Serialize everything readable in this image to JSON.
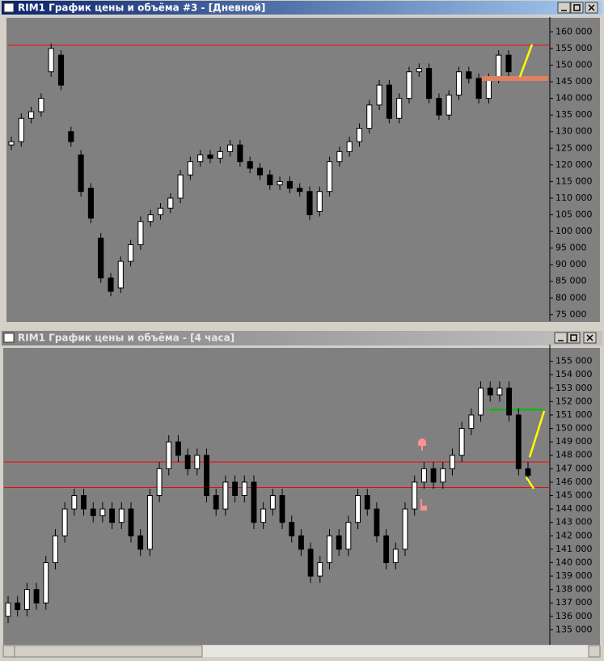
{
  "chart_data": [
    {
      "type": "candlestick",
      "title": "RIM1 График цены и объёма #3 - [Дневной]",
      "open": [
        126000,
        127000,
        134000,
        136000,
        148000,
        153000,
        130000,
        123000,
        113000,
        98000,
        86000,
        83000,
        91000,
        96000,
        103000,
        105000,
        107000,
        110000,
        117000,
        121000,
        123000,
        122000,
        124000,
        126000,
        121000,
        119000,
        117000,
        114000,
        115000,
        113000,
        112000,
        106000,
        112000,
        121000,
        124000,
        127000,
        131000,
        138000,
        144000,
        134000,
        140000,
        148000,
        149000,
        140000,
        135000,
        141000,
        148000,
        146000,
        140000,
        146000,
        153000
      ],
      "high": [
        128500,
        135500,
        137500,
        141500,
        156500,
        154500,
        131500,
        124500,
        114500,
        99500,
        87500,
        92500,
        97500,
        104500,
        106500,
        108500,
        111500,
        118500,
        122500,
        124500,
        124500,
        125500,
        127500,
        127500,
        122500,
        120500,
        118500,
        116500,
        116500,
        114500,
        113500,
        113500,
        122500,
        125500,
        128500,
        132500,
        139500,
        145500,
        145500,
        141500,
        149500,
        150500,
        150500,
        141500,
        142500,
        149500,
        149500,
        147500,
        147500,
        154500,
        154500
      ],
      "low": [
        124500,
        125500,
        132500,
        134500,
        146500,
        142500,
        125500,
        110500,
        102500,
        84500,
        80500,
        81500,
        89500,
        94500,
        101500,
        103500,
        105500,
        108500,
        115500,
        119500,
        120500,
        120500,
        122500,
        119500,
        117500,
        115500,
        112500,
        112500,
        111500,
        110500,
        103500,
        104500,
        110500,
        119500,
        122500,
        125500,
        129500,
        136500,
        132500,
        132500,
        138500,
        146500,
        138500,
        133500,
        133500,
        139500,
        144500,
        138500,
        138500,
        144500,
        146500
      ],
      "close": [
        127000,
        134000,
        136000,
        140000,
        155000,
        144000,
        127000,
        112000,
        104000,
        86000,
        82000,
        91000,
        96000,
        103000,
        105000,
        107000,
        110000,
        117000,
        121000,
        123000,
        122000,
        124000,
        126000,
        121000,
        119000,
        117000,
        114000,
        115000,
        113000,
        112000,
        105000,
        112000,
        121000,
        124000,
        127000,
        131000,
        138000,
        144000,
        134000,
        140000,
        148000,
        149000,
        140000,
        135000,
        141000,
        148000,
        146000,
        140000,
        146000,
        153000,
        148000
      ],
      "ylim": [
        73500,
        163500
      ],
      "yticks": [
        {
          "value": 75000,
          "label": "75 000"
        },
        {
          "value": 80000,
          "label": "80 000"
        },
        {
          "value": 85000,
          "label": "85 000"
        },
        {
          "value": 90000,
          "label": "90 000"
        },
        {
          "value": 95000,
          "label": "95 000"
        },
        {
          "value": 100000,
          "label": "100 000"
        },
        {
          "value": 105000,
          "label": "105 000"
        },
        {
          "value": 110000,
          "label": "110 000"
        },
        {
          "value": 115000,
          "label": "115 000"
        },
        {
          "value": 120000,
          "label": "120 000"
        },
        {
          "value": 125000,
          "label": "125 000"
        },
        {
          "value": 130000,
          "label": "130 000"
        },
        {
          "value": 135000,
          "label": "135 000"
        },
        {
          "value": 140000,
          "label": "140 000"
        },
        {
          "value": 145000,
          "label": "145 000"
        },
        {
          "value": 150000,
          "label": "150 000"
        },
        {
          "value": 155000,
          "label": "155 000"
        },
        {
          "value": 160000,
          "label": "160 000"
        }
      ],
      "hlines": [
        {
          "value": 156000,
          "color": "#ff0000"
        }
      ]
    },
    {
      "type": "candlestick",
      "title": "RIM1 График цены и объёма - [4 часа]",
      "open": [
        136000,
        137000,
        136500,
        138000,
        137000,
        140000,
        142000,
        144000,
        145000,
        144000,
        143500,
        144000,
        143000,
        144000,
        142000,
        141000,
        145000,
        147000,
        149000,
        148000,
        147000,
        148000,
        145000,
        144000,
        146000,
        145000,
        146000,
        143000,
        144000,
        145000,
        143000,
        142000,
        141000,
        139000,
        140000,
        142000,
        141000,
        143000,
        145000,
        144000,
        142000,
        140000,
        141000,
        144000,
        146000,
        147000,
        146000,
        147000,
        148000,
        150000,
        151000,
        153000,
        152500,
        153000,
        151000,
        147000
      ],
      "high": [
        137500,
        137500,
        138500,
        138500,
        140500,
        142500,
        144500,
        145500,
        145500,
        144500,
        144500,
        144500,
        144500,
        144500,
        142500,
        145500,
        147500,
        149500,
        149500,
        148500,
        148500,
        148500,
        145500,
        146500,
        146500,
        146500,
        146500,
        144500,
        145500,
        145500,
        143500,
        142500,
        141500,
        140500,
        142500,
        142500,
        143500,
        145500,
        145500,
        144500,
        142500,
        141500,
        144500,
        146500,
        147500,
        147500,
        147500,
        148500,
        150500,
        151500,
        153500,
        153500,
        153500,
        153500,
        151500,
        147500
      ],
      "low": [
        135500,
        136000,
        136000,
        136500,
        136500,
        139500,
        141500,
        143500,
        143500,
        143000,
        143000,
        142500,
        142500,
        141500,
        140500,
        140500,
        144500,
        146500,
        147500,
        146500,
        146500,
        144500,
        143500,
        143500,
        144500,
        144500,
        142500,
        142500,
        143500,
        142500,
        141500,
        140500,
        138500,
        138500,
        139500,
        140500,
        140500,
        142500,
        143500,
        141500,
        139500,
        139500,
        140500,
        143500,
        145500,
        145500,
        145500,
        146500,
        147500,
        149500,
        150500,
        152000,
        152000,
        150500,
        146500,
        146000
      ],
      "close": [
        137000,
        136500,
        138000,
        137000,
        140000,
        142000,
        144000,
        145000,
        144000,
        143500,
        144000,
        143000,
        144000,
        142000,
        141000,
        145000,
        147000,
        149000,
        148000,
        147000,
        148000,
        145000,
        144000,
        146000,
        145000,
        146000,
        143000,
        144000,
        145000,
        143000,
        142000,
        141000,
        139000,
        140000,
        142000,
        141000,
        143000,
        145000,
        144000,
        142000,
        140000,
        141000,
        144000,
        146000,
        147000,
        146000,
        147000,
        148000,
        150000,
        151000,
        153000,
        152500,
        153000,
        151000,
        147000,
        146500
      ],
      "ylim": [
        134000,
        156000
      ],
      "yticks": [
        {
          "value": 135000,
          "label": "135 000"
        },
        {
          "value": 136000,
          "label": "136 000"
        },
        {
          "value": 137000,
          "label": "137 000"
        },
        {
          "value": 138000,
          "label": "138 000"
        },
        {
          "value": 139000,
          "label": "139 000"
        },
        {
          "value": 140000,
          "label": "140 000"
        },
        {
          "value": 141000,
          "label": "141 000"
        },
        {
          "value": 142000,
          "label": "142 000"
        },
        {
          "value": 143000,
          "label": "143 000"
        },
        {
          "value": 144000,
          "label": "144 000"
        },
        {
          "value": 145000,
          "label": "145 000"
        },
        {
          "value": 146000,
          "label": "146 000"
        },
        {
          "value": 147000,
          "label": "147 000"
        },
        {
          "value": 148000,
          "label": "148 000"
        },
        {
          "value": 149000,
          "label": "149 000"
        },
        {
          "value": 150000,
          "label": "150 000"
        },
        {
          "value": 151000,
          "label": "151 000"
        },
        {
          "value": 152000,
          "label": "152 000"
        },
        {
          "value": 153000,
          "label": "153 000"
        },
        {
          "value": 154000,
          "label": "154 000"
        },
        {
          "value": 155000,
          "label": "155 000"
        }
      ],
      "hlines": [
        {
          "value": 147500,
          "color": "#ff0000"
        },
        {
          "value": 145600,
          "color": "#ff0000"
        },
        {
          "value": 151400,
          "color": "#00c000"
        }
      ]
    }
  ]
}
